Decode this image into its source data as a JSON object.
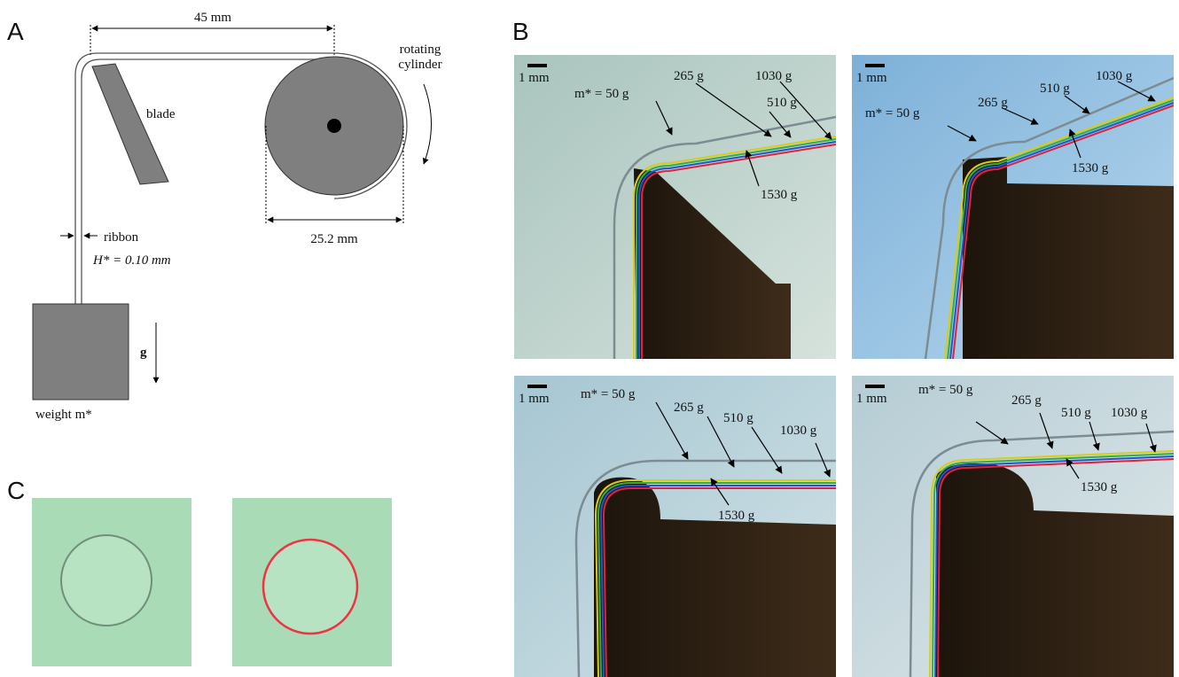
{
  "panel_a": {
    "label": "A",
    "dim_top": "45 mm",
    "cylinder": [
      "rotating",
      "cylinder"
    ],
    "blade": "blade",
    "dim_bottom": "25.2 mm",
    "ribbon": "ribbon",
    "thickness": "H* = 0.10 mm",
    "gravity": "g",
    "weight": "weight m*"
  },
  "panel_b": {
    "label": "B",
    "photos": [
      {
        "scale": "1 mm",
        "labels": [
          "m* = 50 g",
          "265 g",
          "510 g",
          "1030 g",
          "1530 g"
        ]
      },
      {
        "scale": "1 mm",
        "labels": [
          "m* = 50 g",
          "265 g",
          "510 g",
          "1030 g",
          "1530 g"
        ]
      },
      {
        "scale": "1 mm",
        "labels": [
          "m* = 50 g",
          "265 g",
          "510 g",
          "1030 g",
          "1530 g"
        ]
      },
      {
        "scale": "1 mm",
        "labels": [
          "m* = 50 g",
          "265 g",
          "510 g",
          "1030 g",
          "1530 g"
        ]
      }
    ]
  },
  "panel_c": {
    "label": "C"
  }
}
